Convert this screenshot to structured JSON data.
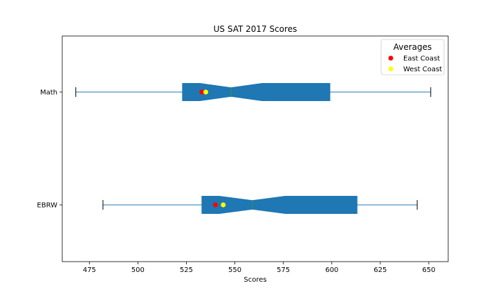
{
  "chart_data": {
    "type": "boxplot",
    "orientation": "horizontal",
    "notched": true,
    "title": "US SAT 2017 Scores",
    "xlabel": "Scores",
    "ylabel": "",
    "xlim": [
      461,
      660
    ],
    "xticks": [
      475,
      500,
      525,
      550,
      575,
      600,
      625,
      650
    ],
    "categories": [
      "EBRW",
      "Math"
    ],
    "boxes": [
      {
        "category": "EBRW",
        "whisker_low": 482,
        "q1": 533,
        "notch_low": 542,
        "median": 559,
        "notch_high": 576,
        "q3": 613,
        "whisker_high": 644
      },
      {
        "category": "Math",
        "whisker_low": 468,
        "q1": 523,
        "notch_low": 532,
        "median": 548,
        "notch_high": 564,
        "q3": 599,
        "whisker_high": 651
      }
    ],
    "points": [
      {
        "name": "East Coast",
        "color": "#ff0000",
        "values": [
          {
            "category": "EBRW",
            "x": 540
          },
          {
            "category": "Math",
            "x": 533
          }
        ]
      },
      {
        "name": "West Coast",
        "color": "#ffff00",
        "values": [
          {
            "category": "EBRW",
            "x": 544
          },
          {
            "category": "Math",
            "x": 535
          }
        ]
      }
    ],
    "legend": {
      "title": "Averages",
      "placement": "top-right",
      "entries": [
        "East Coast",
        "West Coast"
      ]
    },
    "grid": false,
    "colors": {
      "box": "#1f77b4",
      "median": "#2ca02c",
      "whisker": "#1f77b4",
      "cap": "#000000"
    }
  }
}
